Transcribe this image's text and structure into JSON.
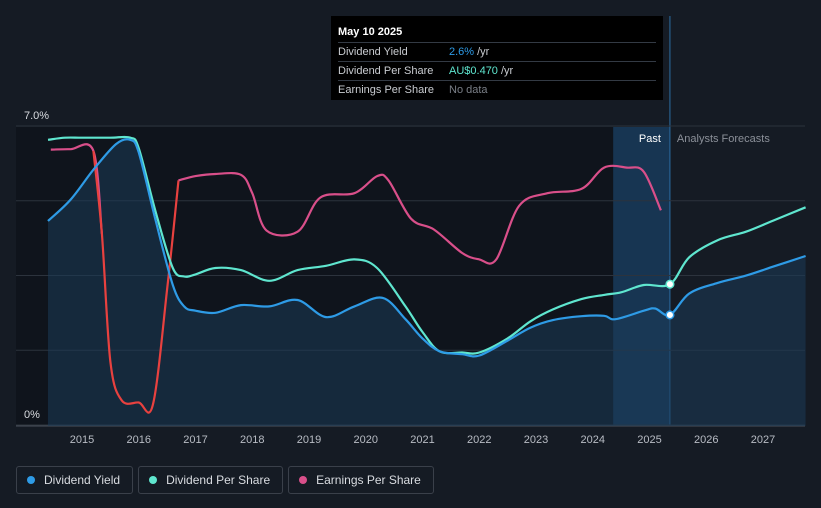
{
  "tooltip": {
    "date": "May 10 2025",
    "rows": [
      {
        "label": "Dividend Yield",
        "value": "2.6%",
        "suffix": "/yr",
        "color": "#2e9be6"
      },
      {
        "label": "Dividend Per Share",
        "value": "AU$0.470",
        "suffix": "/yr",
        "color": "#5fe6cf"
      },
      {
        "label": "Earnings Per Share",
        "value": "No data",
        "suffix": "",
        "color": "#7a7f87"
      }
    ]
  },
  "legend": [
    {
      "label": "Dividend Yield",
      "color": "#2e9be6"
    },
    {
      "label": "Dividend Per Share",
      "color": "#5fe6cf"
    },
    {
      "label": "Earnings Per Share",
      "color": "#d94f8a"
    }
  ],
  "colors": {
    "background": "#151b24",
    "dividend_yield": "#2e9be6",
    "dividend_per_share": "#5fe6cf",
    "eps_positive": "#d94f8a",
    "eps_negative": "#e8413f",
    "grid": "#2c333d",
    "past_label": "#ffffff",
    "forecast_label": "#8b9099"
  },
  "chart_data": {
    "type": "line",
    "title": "",
    "xlabel": "",
    "ylabel": "",
    "x_ticks": [
      "2015",
      "2016",
      "2017",
      "2018",
      "2019",
      "2020",
      "2021",
      "2022",
      "2023",
      "2024",
      "2025",
      "2026",
      "2027"
    ],
    "y_tick_labels": {
      "top": "7.0%",
      "bottom": "0%"
    },
    "ylim": [
      0,
      7.0
    ],
    "xlim": [
      2014.4,
      2027.75
    ],
    "grid": true,
    "legend_position": "bottom-left",
    "regions": {
      "past_label": "Past",
      "forecast_label": "Analysts Forecasts",
      "past_end": 2025.36,
      "highlight_start": 2024.36
    },
    "marker_x": 2025.36,
    "series": [
      {
        "name": "Dividend Yield",
        "axis": "percent",
        "filled": true,
        "points": [
          [
            2014.4,
            4.8
          ],
          [
            2014.8,
            5.3
          ],
          [
            2015.2,
            6.0
          ],
          [
            2015.6,
            6.6
          ],
          [
            2015.85,
            6.7
          ],
          [
            2016.0,
            6.4
          ],
          [
            2016.3,
            4.8
          ],
          [
            2016.6,
            3.3
          ],
          [
            2016.8,
            2.8
          ],
          [
            2017.0,
            2.7
          ],
          [
            2017.35,
            2.65
          ],
          [
            2017.8,
            2.83
          ],
          [
            2018.3,
            2.8
          ],
          [
            2018.8,
            2.95
          ],
          [
            2019.3,
            2.55
          ],
          [
            2019.8,
            2.8
          ],
          [
            2020.3,
            3.0
          ],
          [
            2020.7,
            2.5
          ],
          [
            2021.0,
            2.05
          ],
          [
            2021.3,
            1.75
          ],
          [
            2021.7,
            1.68
          ],
          [
            2022.0,
            1.65
          ],
          [
            2022.5,
            2.0
          ],
          [
            2022.9,
            2.3
          ],
          [
            2023.3,
            2.48
          ],
          [
            2023.8,
            2.57
          ],
          [
            2024.2,
            2.58
          ],
          [
            2024.4,
            2.5
          ],
          [
            2024.9,
            2.7
          ],
          [
            2025.1,
            2.75
          ],
          [
            2025.36,
            2.6
          ],
          [
            2025.7,
            3.1
          ],
          [
            2026.2,
            3.35
          ],
          [
            2026.7,
            3.52
          ],
          [
            2027.2,
            3.74
          ],
          [
            2027.75,
            3.98
          ]
        ]
      },
      {
        "name": "Dividend Per Share",
        "axis": "value",
        "filled": false,
        "points": [
          [
            2014.4,
            6.7
          ],
          [
            2014.7,
            6.75
          ],
          [
            2015.0,
            6.75
          ],
          [
            2015.5,
            6.75
          ],
          [
            2015.85,
            6.75
          ],
          [
            2016.0,
            6.5
          ],
          [
            2016.3,
            5.0
          ],
          [
            2016.6,
            3.7
          ],
          [
            2016.8,
            3.5
          ],
          [
            2017.0,
            3.55
          ],
          [
            2017.35,
            3.7
          ],
          [
            2017.8,
            3.65
          ],
          [
            2018.3,
            3.4
          ],
          [
            2018.8,
            3.65
          ],
          [
            2019.3,
            3.75
          ],
          [
            2019.8,
            3.9
          ],
          [
            2020.2,
            3.7
          ],
          [
            2020.7,
            2.8
          ],
          [
            2021.0,
            2.2
          ],
          [
            2021.3,
            1.75
          ],
          [
            2021.7,
            1.72
          ],
          [
            2022.0,
            1.72
          ],
          [
            2022.5,
            2.05
          ],
          [
            2022.9,
            2.45
          ],
          [
            2023.3,
            2.73
          ],
          [
            2023.8,
            2.97
          ],
          [
            2024.2,
            3.07
          ],
          [
            2024.5,
            3.13
          ],
          [
            2024.9,
            3.3
          ],
          [
            2025.36,
            3.32
          ],
          [
            2025.7,
            3.95
          ],
          [
            2026.2,
            4.35
          ],
          [
            2026.7,
            4.55
          ],
          [
            2027.2,
            4.82
          ],
          [
            2027.75,
            5.12
          ]
        ]
      },
      {
        "name": "Earnings Per Share",
        "axis": "value",
        "filled": false,
        "negative_segment": [
          2015.2,
          2016.8
        ],
        "points": [
          [
            2014.45,
            6.47
          ],
          [
            2014.8,
            6.48
          ],
          [
            2015.2,
            6.44
          ],
          [
            2015.35,
            4.5
          ],
          [
            2015.5,
            1.5
          ],
          [
            2015.7,
            0.6
          ],
          [
            2016.0,
            0.55
          ],
          [
            2016.25,
            0.5
          ],
          [
            2016.5,
            3.2
          ],
          [
            2016.7,
            5.75
          ],
          [
            2017.0,
            5.85
          ],
          [
            2017.35,
            5.9
          ],
          [
            2017.8,
            5.88
          ],
          [
            2018.0,
            5.45
          ],
          [
            2018.25,
            4.58
          ],
          [
            2018.8,
            4.55
          ],
          [
            2019.2,
            5.35
          ],
          [
            2019.8,
            5.45
          ],
          [
            2020.2,
            5.85
          ],
          [
            2020.4,
            5.75
          ],
          [
            2020.8,
            4.85
          ],
          [
            2021.2,
            4.6
          ],
          [
            2021.7,
            4.05
          ],
          [
            2022.0,
            3.9
          ],
          [
            2022.3,
            3.9
          ],
          [
            2022.7,
            5.15
          ],
          [
            2023.2,
            5.45
          ],
          [
            2023.8,
            5.55
          ],
          [
            2024.2,
            6.05
          ],
          [
            2024.6,
            6.05
          ],
          [
            2024.9,
            5.95
          ],
          [
            2025.2,
            5.05
          ]
        ]
      }
    ]
  }
}
